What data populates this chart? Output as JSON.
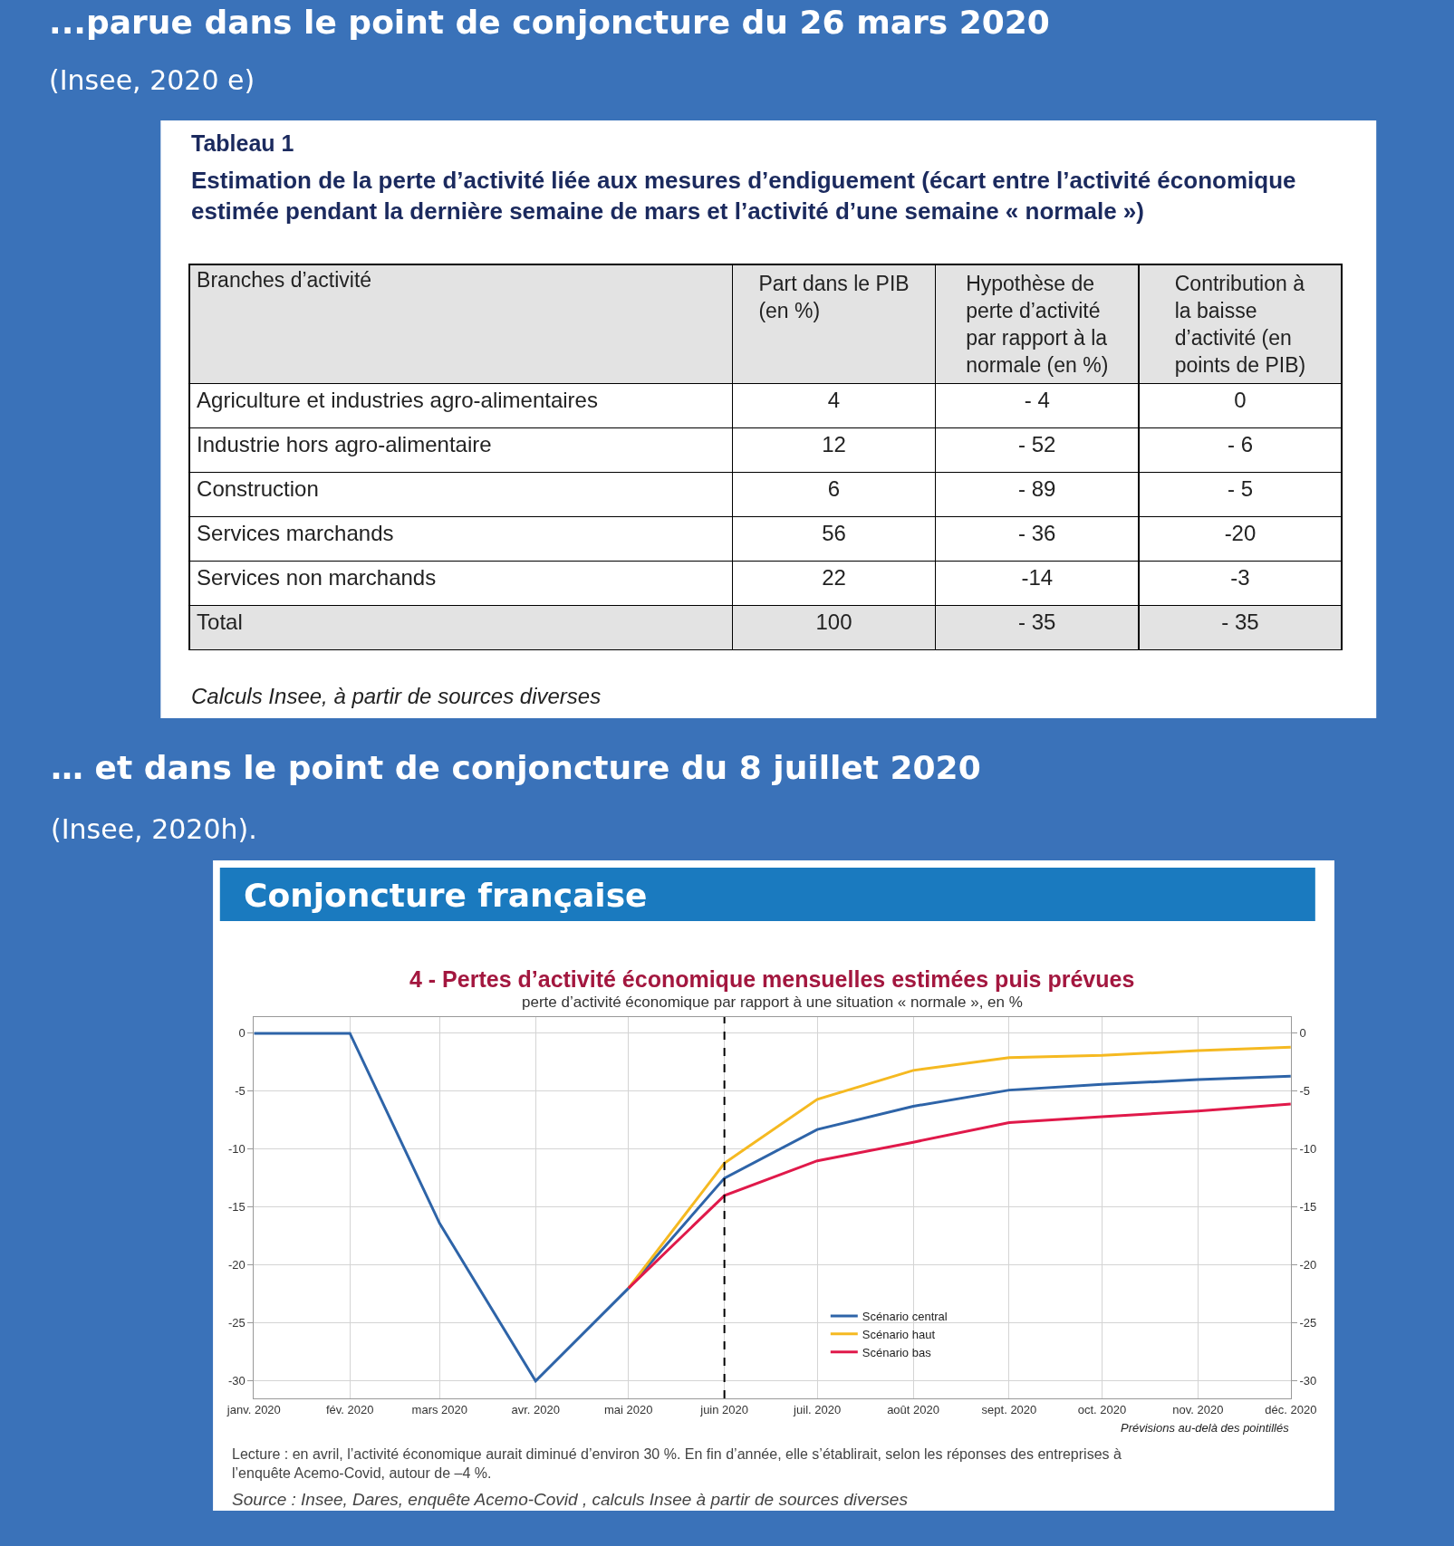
{
  "chart_data": [
    {
      "type": "other",
      "title": "Tableau 1",
      "subtitle": "Estimation de la perte d’activité liée aux mesures d’endiguement (écart entre l’activité économique estimée pendant la dernière semaine de mars et l’activité d’une semaine « normale »)",
      "ylabel": "Branches d’activité",
      "categories": [
        "Part dans le PIB (en %)",
        "Hypothèse de perte d’activité par rapport à la normale (en %)",
        "Contribution à la baisse d’activité (en points de PIB)"
      ],
      "y_categories": [
        "Agriculture et industries agro-alimentaires",
        "Industrie hors agro-alimentaire",
        "Construction",
        "Services marchands",
        "Services non marchands",
        "Total"
      ],
      "cell_labels": [
        [
          "4",
          "- 4",
          "0"
        ],
        [
          "12",
          "- 52",
          "- 6"
        ],
        [
          "6",
          "- 89",
          "- 5"
        ],
        [
          "56",
          "- 36",
          "-20"
        ],
        [
          "22",
          "-14",
          "-3"
        ],
        [
          "100",
          "- 35",
          "- 35"
        ]
      ],
      "annotations": [
        "...parue dans le point de conjoncture du 26 mars 2020",
        "(Insee, 2020 e)",
        "Calculs Insee, à partir de sources diverses"
      ]
    },
    {
      "type": "line",
      "title": "4 - Pertes d’activité économique mensuelles estimées puis prévues",
      "subtitle": "perte d’activité économique par rapport à une situation « normale », en %",
      "x": [
        "2020-01",
        "2020-02",
        "2020-03",
        "2020-04",
        "2020-05",
        "2020-06",
        "2020-07",
        "2020-08",
        "2020-09",
        "2020-10",
        "2020-11",
        "2020-12"
      ],
      "series": [
        {
          "name": "Scénario central",
          "color": "#2e64a8",
          "values": [
            0,
            0,
            -16.4,
            -30,
            -22,
            -12.5,
            -8.3,
            -6.3,
            -4.9,
            -4.4,
            -4.0,
            -3.7
          ]
        },
        {
          "name": "Scénario haut",
          "color": "#f5b921",
          "values": [
            null,
            null,
            null,
            null,
            -22,
            -11.2,
            -5.7,
            -3.2,
            -2.1,
            -1.9,
            -1.5,
            -1.2
          ]
        },
        {
          "name": "Scénario bas",
          "color": "#e0194a",
          "values": [
            null,
            null,
            null,
            null,
            -22,
            -14.0,
            -11.0,
            -9.4,
            -7.7,
            -7.2,
            -6.7,
            -6.1
          ]
        }
      ],
      "xlim": [
        "2020-01",
        "2020-12"
      ],
      "xticks": [
        {
          "value": "2020-01",
          "label": "janv. 2020"
        },
        {
          "value": "2020-02",
          "label": "fév. 2020"
        },
        {
          "value": "2020-03",
          "label": "mars 2020"
        },
        {
          "value": "2020-04",
          "label": "avr. 2020"
        },
        {
          "value": "2020-05",
          "label": "mai 2020"
        },
        {
          "value": "2020-06",
          "label": "juin 2020"
        },
        {
          "value": "2020-07",
          "label": "juil. 2020"
        },
        {
          "value": "2020-08",
          "label": "août 2020"
        },
        {
          "value": "2020-09",
          "label": "sept. 2020"
        },
        {
          "value": "2020-10",
          "label": "oct. 2020"
        },
        {
          "value": "2020-11",
          "label": "nov. 2020"
        },
        {
          "value": "2020-12",
          "label": "déc. 2020"
        }
      ],
      "ylim": [
        -31.5,
        1.4
      ],
      "yticks": [
        0,
        -5,
        -10,
        -15,
        -20,
        -25,
        -30
      ],
      "y2lim": [
        -31.5,
        1.4
      ],
      "y2ticks": [
        0,
        -5,
        -10,
        -15,
        -20,
        -25,
        -30
      ],
      "ref_lines": [
        {
          "axis": "x",
          "value": "2020-06",
          "label": null,
          "color": "#000000",
          "line_style": "dashed"
        }
      ],
      "grid": true,
      "legend": "bottom",
      "line_style": "solid",
      "marker": "none",
      "annotations": [
        "… et dans le point de conjoncture du 8 juillet 2020",
        "(Insee, 2020h).",
        "Conjoncture française",
        "Prévisions au-delà des pointillés",
        "Lecture : en avril, l’activité économique aurait diminué d’environ 30 %. En fin d’année, elle s’établirait, selon les réponses des entreprises à l’enquête Acemo-Covid, autour de –4 %.",
        "Source : Insee, Dares, enquête Acemo-Covid , calculs Insee à partir de sources diverses"
      ]
    }
  ]
}
